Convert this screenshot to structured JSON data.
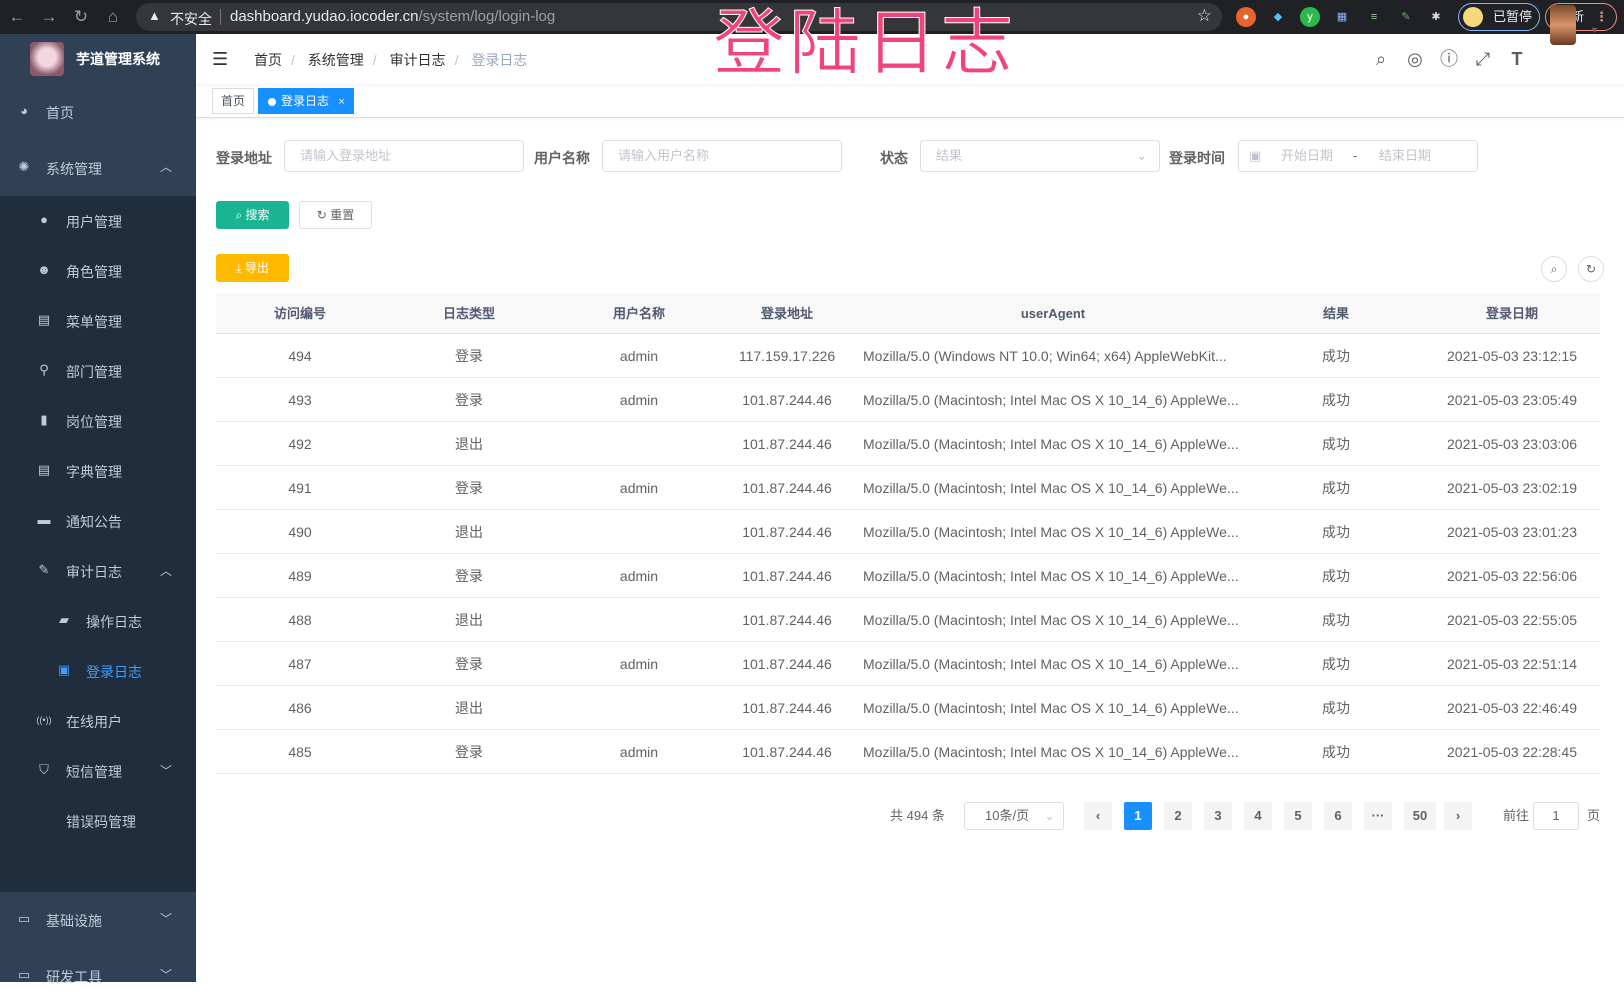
{
  "browser": {
    "insecure_label": "不安全",
    "url_host": "dashboard.yudao.iocoder.cn",
    "url_path": "/system/log/login-log",
    "paused_label": "已暂停",
    "update_label": "更新"
  },
  "overlay_title": "登陆日志",
  "app": {
    "title": "芋道管理系统"
  },
  "sidebar": {
    "items": [
      {
        "label": "首页",
        "icon": "dashboard-icon",
        "level": 0
      },
      {
        "label": "系统管理",
        "icon": "gear-icon",
        "level": 0,
        "expanded": true
      },
      {
        "label": "用户管理",
        "icon": "user-icon",
        "level": 1
      },
      {
        "label": "角色管理",
        "icon": "peoples-icon",
        "level": 1
      },
      {
        "label": "菜单管理",
        "icon": "tree-table-icon",
        "level": 1
      },
      {
        "label": "部门管理",
        "icon": "tree-icon",
        "level": 1
      },
      {
        "label": "岗位管理",
        "icon": "post-icon",
        "level": 1
      },
      {
        "label": "字典管理",
        "icon": "dict-icon",
        "level": 1
      },
      {
        "label": "通知公告",
        "icon": "message-icon",
        "level": 1
      },
      {
        "label": "审计日志",
        "icon": "log-icon",
        "level": 1,
        "expanded": true
      },
      {
        "label": "操作日志",
        "icon": "form-icon",
        "level": 2
      },
      {
        "label": "登录日志",
        "icon": "logininfor-icon",
        "level": 2,
        "active": true
      },
      {
        "label": "在线用户",
        "icon": "online-icon",
        "level": 1
      },
      {
        "label": "短信管理",
        "icon": "validcode-icon",
        "level": 1,
        "collapsed": true
      },
      {
        "label": "错误码管理",
        "icon": "code-icon",
        "level": 1
      },
      {
        "label": "基础设施",
        "icon": "monitor-icon",
        "level": 0,
        "collapsed": true
      },
      {
        "label": "研发工具",
        "icon": "tool-icon",
        "level": 0,
        "collapsed": true
      }
    ]
  },
  "breadcrumb": [
    "首页",
    "系统管理",
    "审计日志",
    "登录日志"
  ],
  "tags": [
    {
      "label": "首页"
    },
    {
      "label": "登录日志",
      "active": true,
      "close": "×"
    }
  ],
  "filters": {
    "ip": {
      "label": "登录地址",
      "placeholder": "请输入登录地址"
    },
    "username": {
      "label": "用户名称",
      "placeholder": "请输入用户名称"
    },
    "status": {
      "label": "状态",
      "placeholder": "结果"
    },
    "time": {
      "label": "登录时间",
      "start_placeholder": "开始日期",
      "separator": "-",
      "end_placeholder": "结束日期"
    }
  },
  "buttons": {
    "search": "搜索",
    "reset": "重置",
    "export": "导出"
  },
  "table": {
    "columns": [
      "访问编号",
      "日志类型",
      "用户名称",
      "登录地址",
      "userAgent",
      "结果",
      "登录日期"
    ],
    "rows": [
      [
        "494",
        "登录",
        "admin",
        "117.159.17.226",
        "Mozilla/5.0 (Windows NT 10.0; Win64; x64) AppleWebKit...",
        "成功",
        "2021-05-03 23:12:15"
      ],
      [
        "493",
        "登录",
        "admin",
        "101.87.244.46",
        "Mozilla/5.0 (Macintosh; Intel Mac OS X 10_14_6) AppleWe...",
        "成功",
        "2021-05-03 23:05:49"
      ],
      [
        "492",
        "退出",
        "",
        "101.87.244.46",
        "Mozilla/5.0 (Macintosh; Intel Mac OS X 10_14_6) AppleWe...",
        "成功",
        "2021-05-03 23:03:06"
      ],
      [
        "491",
        "登录",
        "admin",
        "101.87.244.46",
        "Mozilla/5.0 (Macintosh; Intel Mac OS X 10_14_6) AppleWe...",
        "成功",
        "2021-05-03 23:02:19"
      ],
      [
        "490",
        "退出",
        "",
        "101.87.244.46",
        "Mozilla/5.0 (Macintosh; Intel Mac OS X 10_14_6) AppleWe...",
        "成功",
        "2021-05-03 23:01:23"
      ],
      [
        "489",
        "登录",
        "admin",
        "101.87.244.46",
        "Mozilla/5.0 (Macintosh; Intel Mac OS X 10_14_6) AppleWe...",
        "成功",
        "2021-05-03 22:56:06"
      ],
      [
        "488",
        "退出",
        "",
        "101.87.244.46",
        "Mozilla/5.0 (Macintosh; Intel Mac OS X 10_14_6) AppleWe...",
        "成功",
        "2021-05-03 22:55:05"
      ],
      [
        "487",
        "登录",
        "admin",
        "101.87.244.46",
        "Mozilla/5.0 (Macintosh; Intel Mac OS X 10_14_6) AppleWe...",
        "成功",
        "2021-05-03 22:51:14"
      ],
      [
        "486",
        "退出",
        "",
        "101.87.244.46",
        "Mozilla/5.0 (Macintosh; Intel Mac OS X 10_14_6) AppleWe...",
        "成功",
        "2021-05-03 22:46:49"
      ],
      [
        "485",
        "登录",
        "admin",
        "101.87.244.46",
        "Mozilla/5.0 (Macintosh; Intel Mac OS X 10_14_6) AppleWe...",
        "成功",
        "2021-05-03 22:28:45"
      ]
    ]
  },
  "pagination": {
    "total": "共 494 条",
    "page_size": "10条/页",
    "pages": [
      "1",
      "2",
      "3",
      "4",
      "5",
      "6",
      "···",
      "50"
    ],
    "current": "1",
    "prev": "‹",
    "next": "›",
    "goto_label": "前往",
    "goto_value": "1",
    "goto_suffix": "页"
  },
  "colors": {
    "sidebar": "#304156",
    "submenu": "#1f2d3d",
    "primary": "#1890ff",
    "search_btn": "#1ab394",
    "export_btn": "#ffba00",
    "overlay": "#f0457a"
  }
}
